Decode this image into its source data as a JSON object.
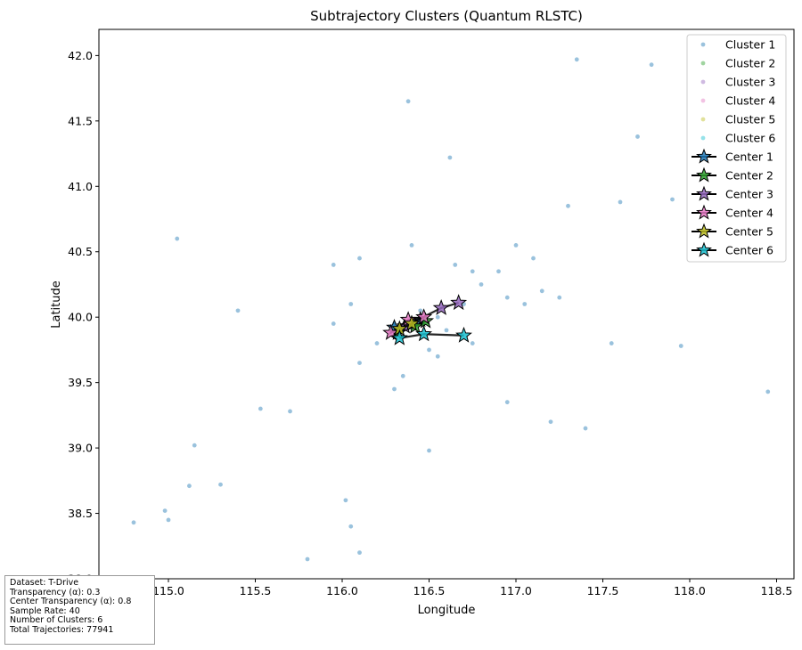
{
  "chart_data": {
    "type": "scatter",
    "title": "Subtrajectory Clusters (Quantum RLSTC)",
    "xlabel": "Longitude",
    "ylabel": "Latitude",
    "xlim": [
      114.6,
      118.6
    ],
    "ylim": [
      38.0,
      42.2
    ],
    "x_ticks": [
      "115.0",
      "115.5",
      "116.0",
      "116.5",
      "117.0",
      "117.5",
      "118.0",
      "118.5"
    ],
    "y_ticks": [
      "38.0",
      "38.5",
      "39.0",
      "39.5",
      "40.0",
      "40.5",
      "41.0",
      "41.5",
      "42.0"
    ],
    "grid": false,
    "legend_position": "top-right",
    "series": [
      {
        "name": "Cluster 1",
        "color": "#1f77b4",
        "marker": "point",
        "points": [
          [
            116.4,
            39.92
          ],
          [
            116.3,
            39.95
          ],
          [
            116.55,
            40.0
          ],
          [
            116.45,
            40.05
          ],
          [
            116.35,
            39.85
          ],
          [
            116.6,
            39.9
          ],
          [
            116.2,
            39.8
          ],
          [
            116.5,
            39.75
          ],
          [
            116.7,
            40.1
          ],
          [
            116.8,
            40.25
          ],
          [
            116.9,
            40.35
          ],
          [
            117.1,
            40.45
          ],
          [
            116.95,
            40.15
          ],
          [
            117.05,
            40.1
          ],
          [
            117.15,
            40.2
          ],
          [
            117.25,
            40.15
          ],
          [
            116.65,
            40.4
          ],
          [
            116.4,
            40.55
          ],
          [
            116.1,
            40.45
          ],
          [
            115.95,
            40.4
          ],
          [
            116.05,
            40.1
          ],
          [
            115.95,
            39.95
          ],
          [
            116.1,
            39.65
          ],
          [
            116.35,
            39.55
          ],
          [
            116.3,
            39.45
          ],
          [
            116.55,
            39.7
          ],
          [
            116.75,
            39.8
          ],
          [
            116.75,
            40.35
          ],
          [
            117.0,
            40.55
          ],
          [
            117.3,
            40.85
          ],
          [
            117.6,
            40.88
          ],
          [
            117.9,
            40.9
          ],
          [
            117.35,
            41.97
          ],
          [
            117.78,
            41.93
          ],
          [
            117.7,
            41.38
          ],
          [
            116.62,
            41.22
          ],
          [
            116.38,
            41.65
          ],
          [
            115.05,
            40.6
          ],
          [
            115.4,
            40.05
          ],
          [
            116.95,
            39.35
          ],
          [
            117.4,
            39.15
          ],
          [
            117.55,
            39.8
          ],
          [
            117.95,
            39.78
          ],
          [
            118.45,
            39.43
          ],
          [
            115.8,
            38.15
          ],
          [
            116.1,
            38.2
          ],
          [
            116.05,
            38.4
          ],
          [
            116.02,
            38.6
          ],
          [
            115.0,
            38.45
          ],
          [
            114.8,
            38.43
          ],
          [
            115.12,
            38.71
          ],
          [
            115.53,
            39.3
          ],
          [
            115.7,
            39.28
          ],
          [
            116.5,
            38.98
          ],
          [
            117.2,
            39.2
          ],
          [
            115.15,
            39.02
          ],
          [
            115.3,
            38.72
          ],
          [
            114.98,
            38.52
          ]
        ]
      },
      {
        "name": "Cluster 2",
        "color": "#2ca02c",
        "marker": "point",
        "points": []
      },
      {
        "name": "Cluster 3",
        "color": "#9467bd",
        "marker": "point",
        "points": []
      },
      {
        "name": "Cluster 4",
        "color": "#e377c2",
        "marker": "point",
        "points": []
      },
      {
        "name": "Cluster 5",
        "color": "#bcbd22",
        "marker": "point",
        "points": []
      },
      {
        "name": "Cluster 6",
        "color": "#17becf",
        "marker": "point",
        "points": []
      },
      {
        "name": "Center 1",
        "color": "#1f77b4",
        "marker": "star",
        "points": [
          [
            116.3,
            39.92
          ],
          [
            116.4,
            39.95
          ],
          [
            116.45,
            39.98
          ]
        ]
      },
      {
        "name": "Center 2",
        "color": "#2ca02c",
        "marker": "star",
        "points": [
          [
            116.32,
            39.88
          ],
          [
            116.42,
            39.93
          ],
          [
            116.48,
            39.97
          ]
        ]
      },
      {
        "name": "Center 3",
        "color": "#9467bd",
        "marker": "star",
        "points": [
          [
            116.36,
            39.93
          ],
          [
            116.57,
            40.07
          ],
          [
            116.67,
            40.11
          ]
        ]
      },
      {
        "name": "Center 4",
        "color": "#e377c2",
        "marker": "star",
        "points": [
          [
            116.28,
            39.88
          ],
          [
            116.38,
            39.98
          ],
          [
            116.47,
            40.0
          ]
        ]
      },
      {
        "name": "Center 5",
        "color": "#bcbd22",
        "marker": "star",
        "points": [
          [
            116.33,
            39.91
          ],
          [
            116.4,
            39.95
          ]
        ]
      },
      {
        "name": "Center 6",
        "color": "#17becf",
        "marker": "star",
        "points": [
          [
            116.33,
            39.84
          ],
          [
            116.47,
            39.87
          ],
          [
            116.7,
            39.86
          ]
        ]
      }
    ]
  },
  "info": {
    "dataset": "Dataset: T-Drive",
    "transparency": "Transparency (α): 0.3",
    "center_transparency": "Center Transparency (α): 0.8",
    "sample_rate": "Sample Rate: 40",
    "num_clusters": "Number of Clusters: 6",
    "total_trajectories": "Total Trajectories: 77941"
  }
}
